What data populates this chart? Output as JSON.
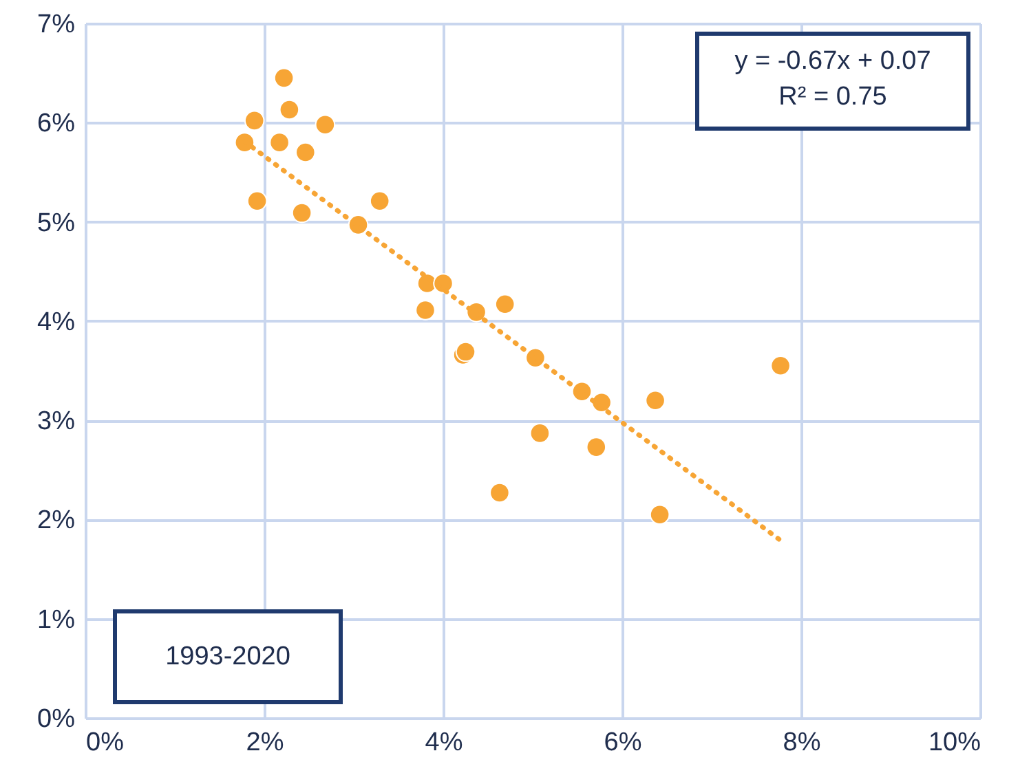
{
  "chart_data": {
    "type": "scatter",
    "xlim": [
      0,
      10
    ],
    "xticks": [
      {
        "value": 0,
        "label": "0%"
      },
      {
        "value": 2,
        "label": "2%"
      },
      {
        "value": 4,
        "label": "4%"
      },
      {
        "value": 6,
        "label": "6%"
      },
      {
        "value": 8,
        "label": "8%"
      },
      {
        "value": 10,
        "label": "10%"
      }
    ],
    "ylim": [
      0,
      7
    ],
    "yticks": [
      {
        "value": 0,
        "label": "0%"
      },
      {
        "value": 1,
        "label": "1%"
      },
      {
        "value": 2,
        "label": "2%"
      },
      {
        "value": 3,
        "label": "3%"
      },
      {
        "value": 4,
        "label": "4%"
      },
      {
        "value": 5,
        "label": "5%"
      },
      {
        "value": 6,
        "label": "6%"
      },
      {
        "value": 7,
        "label": "7%"
      }
    ],
    "grid": true,
    "series": [
      {
        "marker": "circle",
        "color": "#f7a535",
        "x": [
          1.78,
          1.89,
          1.92,
          2.22,
          2.28,
          2.17,
          2.46,
          2.42,
          2.68,
          3.05,
          3.29,
          3.82,
          4.0,
          3.8,
          4.69,
          4.37,
          4.22,
          4.25,
          5.03,
          5.55,
          5.77,
          6.37,
          5.08,
          5.71,
          4.63,
          6.42,
          7.77
        ],
        "values": [
          5.8,
          6.02,
          5.21,
          6.45,
          6.13,
          5.8,
          5.7,
          5.09,
          5.98,
          4.97,
          5.21,
          4.38,
          4.38,
          4.11,
          4.17,
          4.09,
          3.66,
          3.69,
          3.63,
          3.29,
          3.18,
          3.2,
          2.87,
          2.73,
          2.27,
          2.05,
          3.55
        ]
      },
      {
        "type": "line",
        "color": "#f7a535",
        "line_style": "dotted",
        "x": [
          1.78,
          7.77
        ],
        "values": [
          5.81,
          1.79
        ]
      }
    ],
    "annotations": [
      "y = -0.67x + 0.07",
      "R² = 0.75",
      "1993-2020"
    ]
  }
}
